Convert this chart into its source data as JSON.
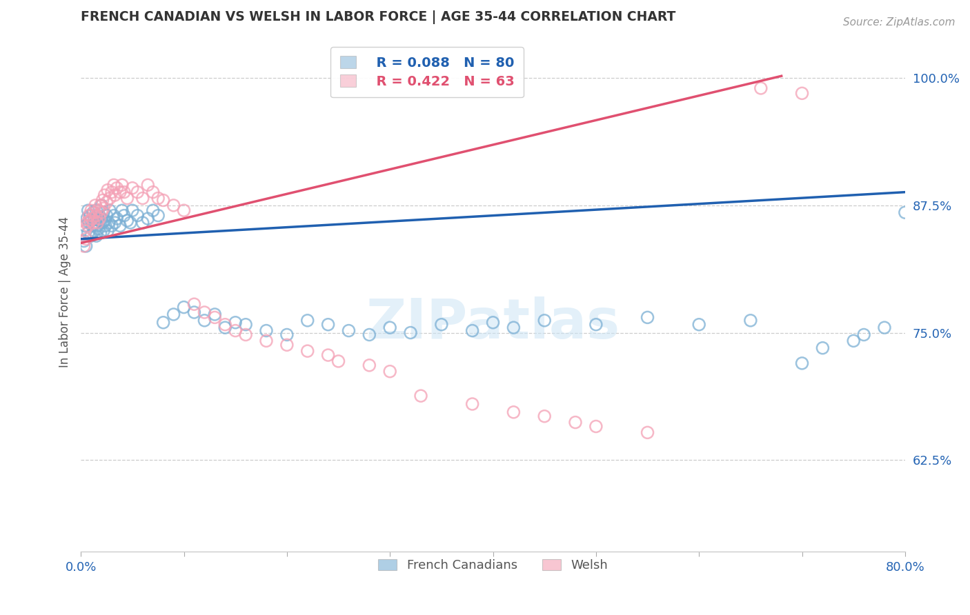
{
  "title": "FRENCH CANADIAN VS WELSH IN LABOR FORCE | AGE 35-44 CORRELATION CHART",
  "xlabel": "",
  "ylabel": "In Labor Force | Age 35-44",
  "source_text": "Source: ZipAtlas.com",
  "xlim": [
    0.0,
    0.8
  ],
  "ylim": [
    0.535,
    1.045
  ],
  "yticks": [
    0.625,
    0.75,
    0.875,
    1.0
  ],
  "ytick_labels": [
    "62.5%",
    "75.0%",
    "87.5%",
    "100.0%"
  ],
  "xticks": [
    0.0,
    0.1,
    0.2,
    0.3,
    0.4,
    0.5,
    0.6,
    0.7,
    0.8
  ],
  "xtick_labels": [
    "0.0%",
    "",
    "",
    "",
    "",
    "",
    "",
    "",
    "80.0%"
  ],
  "legend_fc_label": "French Canadians",
  "legend_welsh_label": "Welsh",
  "legend_fc_R": "R = 0.088",
  "legend_fc_N": "N = 80",
  "legend_welsh_R": "R = 0.422",
  "legend_welsh_N": "N = 63",
  "fc_color": "#7bafd4",
  "welsh_color": "#f4a0b5",
  "fc_line_color": "#2060b0",
  "welsh_line_color": "#e05070",
  "watermark": "ZIPatlas",
  "fc_scatter": [
    [
      0.003,
      0.84
    ],
    [
      0.004,
      0.855
    ],
    [
      0.005,
      0.835
    ],
    [
      0.006,
      0.862
    ],
    [
      0.007,
      0.848
    ],
    [
      0.007,
      0.87
    ],
    [
      0.008,
      0.858
    ],
    [
      0.009,
      0.865
    ],
    [
      0.01,
      0.845
    ],
    [
      0.01,
      0.86
    ],
    [
      0.011,
      0.855
    ],
    [
      0.012,
      0.868
    ],
    [
      0.013,
      0.85
    ],
    [
      0.013,
      0.862
    ],
    [
      0.014,
      0.858
    ],
    [
      0.015,
      0.845
    ],
    [
      0.015,
      0.87
    ],
    [
      0.016,
      0.855
    ],
    [
      0.016,
      0.865
    ],
    [
      0.017,
      0.852
    ],
    [
      0.018,
      0.86
    ],
    [
      0.019,
      0.848
    ],
    [
      0.02,
      0.862
    ],
    [
      0.02,
      0.875
    ],
    [
      0.021,
      0.858
    ],
    [
      0.022,
      0.85
    ],
    [
      0.022,
      0.868
    ],
    [
      0.023,
      0.86
    ],
    [
      0.024,
      0.855
    ],
    [
      0.025,
      0.865
    ],
    [
      0.026,
      0.85
    ],
    [
      0.027,
      0.858
    ],
    [
      0.028,
      0.87
    ],
    [
      0.03,
      0.855
    ],
    [
      0.032,
      0.865
    ],
    [
      0.033,
      0.858
    ],
    [
      0.035,
      0.862
    ],
    [
      0.038,
      0.855
    ],
    [
      0.04,
      0.87
    ],
    [
      0.042,
      0.865
    ],
    [
      0.045,
      0.86
    ],
    [
      0.048,
      0.858
    ],
    [
      0.05,
      0.87
    ],
    [
      0.055,
      0.865
    ],
    [
      0.06,
      0.858
    ],
    [
      0.065,
      0.862
    ],
    [
      0.07,
      0.87
    ],
    [
      0.075,
      0.865
    ],
    [
      0.08,
      0.76
    ],
    [
      0.09,
      0.768
    ],
    [
      0.1,
      0.775
    ],
    [
      0.11,
      0.77
    ],
    [
      0.12,
      0.762
    ],
    [
      0.13,
      0.768
    ],
    [
      0.14,
      0.755
    ],
    [
      0.15,
      0.76
    ],
    [
      0.16,
      0.758
    ],
    [
      0.18,
      0.752
    ],
    [
      0.2,
      0.748
    ],
    [
      0.22,
      0.762
    ],
    [
      0.24,
      0.758
    ],
    [
      0.26,
      0.752
    ],
    [
      0.28,
      0.748
    ],
    [
      0.3,
      0.755
    ],
    [
      0.32,
      0.75
    ],
    [
      0.35,
      0.758
    ],
    [
      0.38,
      0.752
    ],
    [
      0.4,
      0.76
    ],
    [
      0.42,
      0.755
    ],
    [
      0.45,
      0.762
    ],
    [
      0.5,
      0.758
    ],
    [
      0.55,
      0.765
    ],
    [
      0.6,
      0.758
    ],
    [
      0.65,
      0.762
    ],
    [
      0.7,
      0.72
    ],
    [
      0.72,
      0.735
    ],
    [
      0.75,
      0.742
    ],
    [
      0.76,
      0.748
    ],
    [
      0.78,
      0.755
    ],
    [
      0.8,
      0.868
    ]
  ],
  "welsh_scatter": [
    [
      0.003,
      0.835
    ],
    [
      0.004,
      0.85
    ],
    [
      0.005,
      0.842
    ],
    [
      0.006,
      0.858
    ],
    [
      0.007,
      0.855
    ],
    [
      0.008,
      0.865
    ],
    [
      0.009,
      0.86
    ],
    [
      0.01,
      0.87
    ],
    [
      0.011,
      0.862
    ],
    [
      0.012,
      0.858
    ],
    [
      0.013,
      0.868
    ],
    [
      0.014,
      0.875
    ],
    [
      0.015,
      0.865
    ],
    [
      0.016,
      0.858
    ],
    [
      0.017,
      0.87
    ],
    [
      0.018,
      0.862
    ],
    [
      0.019,
      0.875
    ],
    [
      0.02,
      0.868
    ],
    [
      0.021,
      0.88
    ],
    [
      0.022,
      0.872
    ],
    [
      0.023,
      0.885
    ],
    [
      0.025,
      0.878
    ],
    [
      0.026,
      0.89
    ],
    [
      0.028,
      0.882
    ],
    [
      0.03,
      0.888
    ],
    [
      0.032,
      0.895
    ],
    [
      0.033,
      0.885
    ],
    [
      0.035,
      0.892
    ],
    [
      0.038,
      0.888
    ],
    [
      0.04,
      0.895
    ],
    [
      0.042,
      0.888
    ],
    [
      0.045,
      0.882
    ],
    [
      0.05,
      0.892
    ],
    [
      0.055,
      0.888
    ],
    [
      0.06,
      0.882
    ],
    [
      0.065,
      0.895
    ],
    [
      0.07,
      0.888
    ],
    [
      0.075,
      0.882
    ],
    [
      0.08,
      0.88
    ],
    [
      0.09,
      0.875
    ],
    [
      0.1,
      0.87
    ],
    [
      0.11,
      0.778
    ],
    [
      0.12,
      0.77
    ],
    [
      0.13,
      0.765
    ],
    [
      0.14,
      0.758
    ],
    [
      0.15,
      0.752
    ],
    [
      0.16,
      0.748
    ],
    [
      0.18,
      0.742
    ],
    [
      0.2,
      0.738
    ],
    [
      0.22,
      0.732
    ],
    [
      0.24,
      0.728
    ],
    [
      0.25,
      0.722
    ],
    [
      0.28,
      0.718
    ],
    [
      0.3,
      0.712
    ],
    [
      0.33,
      0.688
    ],
    [
      0.38,
      0.68
    ],
    [
      0.42,
      0.672
    ],
    [
      0.45,
      0.668
    ],
    [
      0.48,
      0.662
    ],
    [
      0.5,
      0.658
    ],
    [
      0.55,
      0.652
    ],
    [
      0.66,
      0.99
    ],
    [
      0.7,
      0.985
    ]
  ]
}
